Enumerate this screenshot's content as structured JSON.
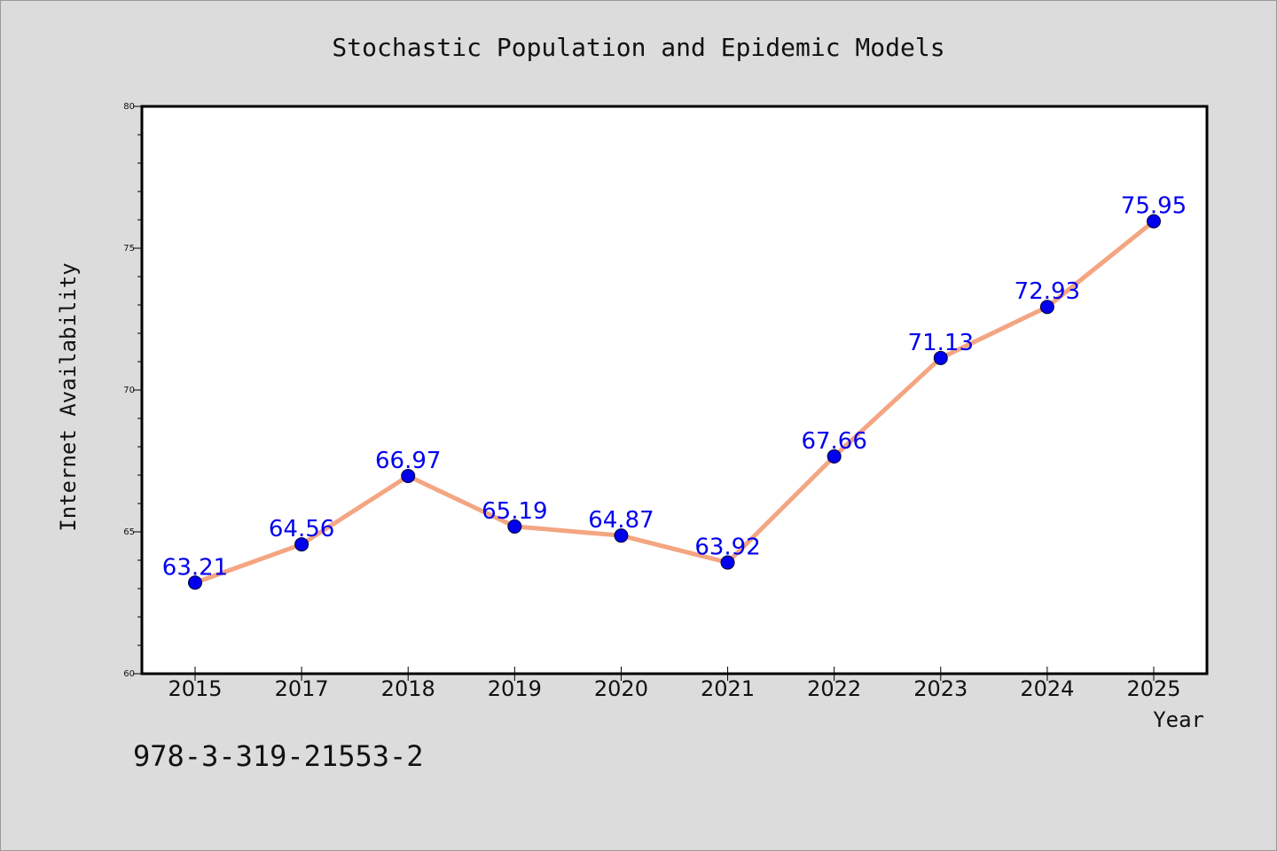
{
  "chart_data": {
    "type": "line",
    "title": "Stochastic Population and Epidemic Models",
    "xlabel": "Year",
    "ylabel": "Internet Availability",
    "categories": [
      "2015",
      "2017",
      "2018",
      "2019",
      "2020",
      "2021",
      "2022",
      "2023",
      "2024",
      "2025"
    ],
    "series": [
      {
        "values": [
          63.21,
          64.56,
          66.97,
          65.19,
          64.87,
          63.92,
          67.66,
          71.13,
          72.93,
          75.95
        ],
        "labels": [
          "63.21",
          "64.56",
          "66.97",
          "65.19",
          "64.87",
          "63.92",
          "67.66",
          "71.13",
          "72.93",
          "75.95"
        ]
      }
    ],
    "ylim": [
      60,
      80
    ],
    "yticks": [
      "60",
      "65",
      "70",
      "75",
      "80"
    ],
    "grid": false,
    "colors": {
      "line": "#f4a582",
      "marker": "#0000ee",
      "label": "#0000ee",
      "background": "#dcdcdc",
      "plot_background": "#ffffff"
    }
  },
  "footer": {
    "isbn": "978-3-319-21553-2"
  }
}
